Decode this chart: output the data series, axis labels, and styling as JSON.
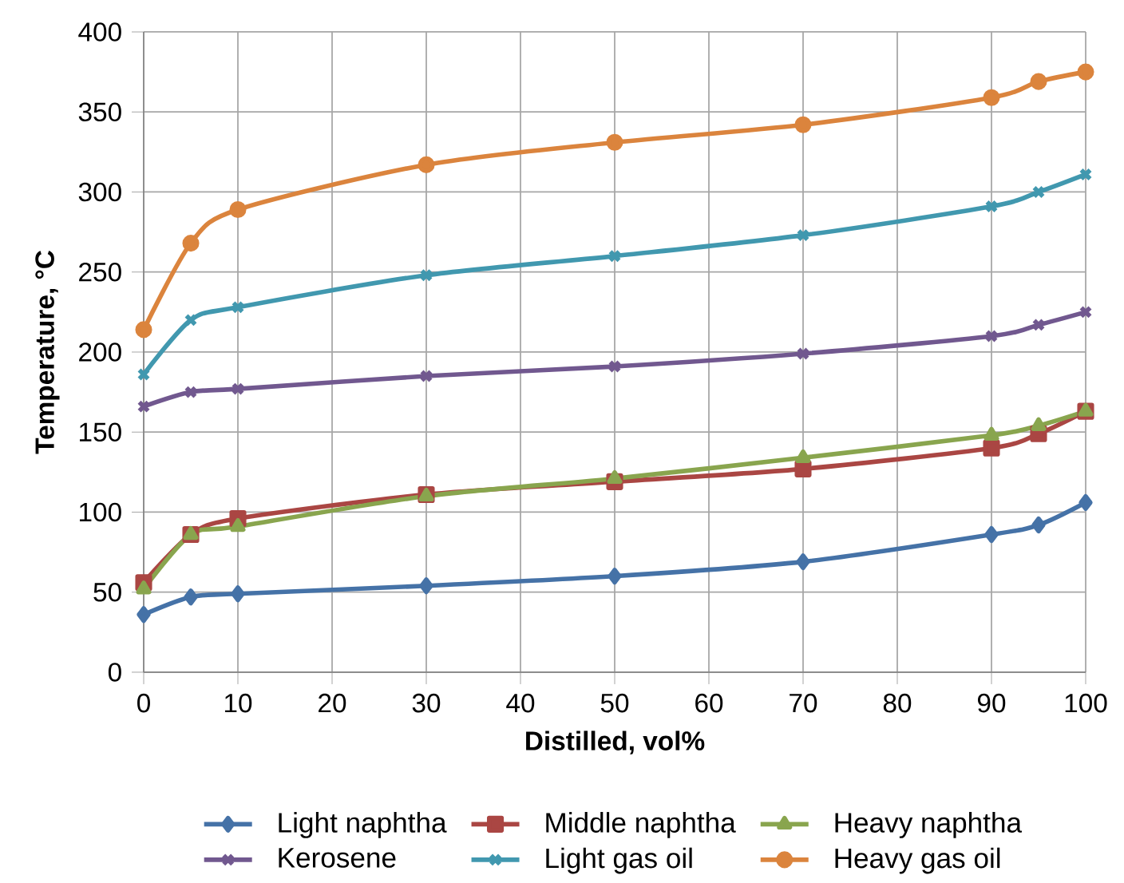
{
  "chart_data": {
    "type": "line",
    "xlabel": "Distilled, vol%",
    "ylabel": "Temperature, °C",
    "x": [
      0,
      5,
      10,
      30,
      50,
      70,
      90,
      95,
      100
    ],
    "series": [
      {
        "name": "Light naphtha",
        "color": "#4572a7",
        "marker": "diamond",
        "values": [
          36,
          47,
          49,
          54,
          60,
          69,
          86,
          92,
          106
        ]
      },
      {
        "name": "Middle naphtha",
        "color": "#aa4643",
        "marker": "square",
        "values": [
          56,
          86,
          96,
          111,
          119,
          127,
          140,
          149,
          163
        ]
      },
      {
        "name": "Heavy naphtha",
        "color": "#89a54e",
        "marker": "triangle",
        "values": [
          52,
          86,
          91,
          110,
          121,
          134,
          148,
          154,
          163
        ]
      },
      {
        "name": "Kerosene",
        "color": "#71588f",
        "marker": "cross",
        "values": [
          166,
          175,
          177,
          185,
          191,
          199,
          210,
          217,
          225
        ]
      },
      {
        "name": "Light gas oil",
        "color": "#4198af",
        "marker": "cross",
        "values": [
          186,
          220,
          228,
          248,
          260,
          273,
          291,
          300,
          311
        ]
      },
      {
        "name": "Heavy gas oil",
        "color": "#db843d",
        "marker": "circle",
        "values": [
          214,
          268,
          289,
          317,
          331,
          342,
          359,
          369,
          375
        ]
      }
    ],
    "xlim": [
      0,
      100
    ],
    "xticks": [
      0,
      10,
      20,
      30,
      40,
      50,
      60,
      70,
      80,
      90,
      100
    ],
    "ylim": [
      0,
      400
    ],
    "yticks": [
      0,
      50,
      100,
      150,
      200,
      250,
      300,
      350,
      400
    ],
    "grid": true,
    "legend": "bottom",
    "line_style": "solid"
  }
}
